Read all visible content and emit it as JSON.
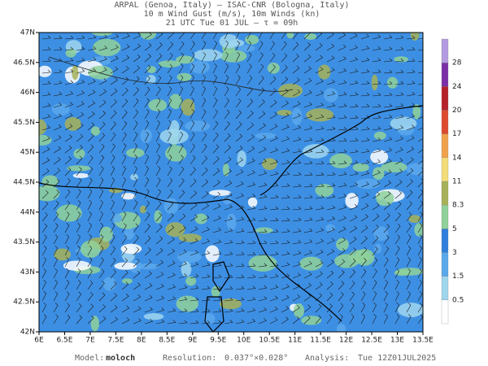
{
  "header": {
    "lines": [
      "ARPAL (Genoa, Italy)  –  ISAC-CNR (Bologna, Italy)",
      "10 m Wind Gust (m/s), 10m Winds (kn)",
      "21 UTC Tue 01 JUL  –  τ = 09h"
    ]
  },
  "map": {
    "lon_labels": [
      "6E",
      "6.5E",
      "7E",
      "7.5E",
      "8E",
      "8.5E",
      "9E",
      "9.5E",
      "10E",
      "10.5E",
      "11E",
      "11.5E",
      "12E",
      "12.5E",
      "13E",
      "13.5E"
    ],
    "lat_labels": [
      "42N",
      "42.5N",
      "43N",
      "43.5N",
      "44N",
      "44.5N",
      "45N",
      "45.5N",
      "46N",
      "46.5N",
      "47N"
    ]
  },
  "colorbar": {
    "labels": [
      "0.5",
      "1.5",
      "3",
      "5",
      "8.3",
      "11",
      "14",
      "17",
      "20",
      "24",
      "28"
    ],
    "colors": [
      "#ffffff",
      "#9fd6ee",
      "#5aa8ec",
      "#2f7fdc",
      "#8fd19a",
      "#a6b158",
      "#f3dc77",
      "#f0a14a",
      "#dd4a2f",
      "#b5222b",
      "#7a2fa7",
      "#b39ae0"
    ]
  },
  "footer": {
    "model_label": "Model:",
    "model": "moloch",
    "resolution_label": "Resolution:",
    "resolution": "0.037°×0.028°",
    "analysis_label": "Analysis:",
    "analysis": "Tue 12Z01JUL2025"
  }
}
